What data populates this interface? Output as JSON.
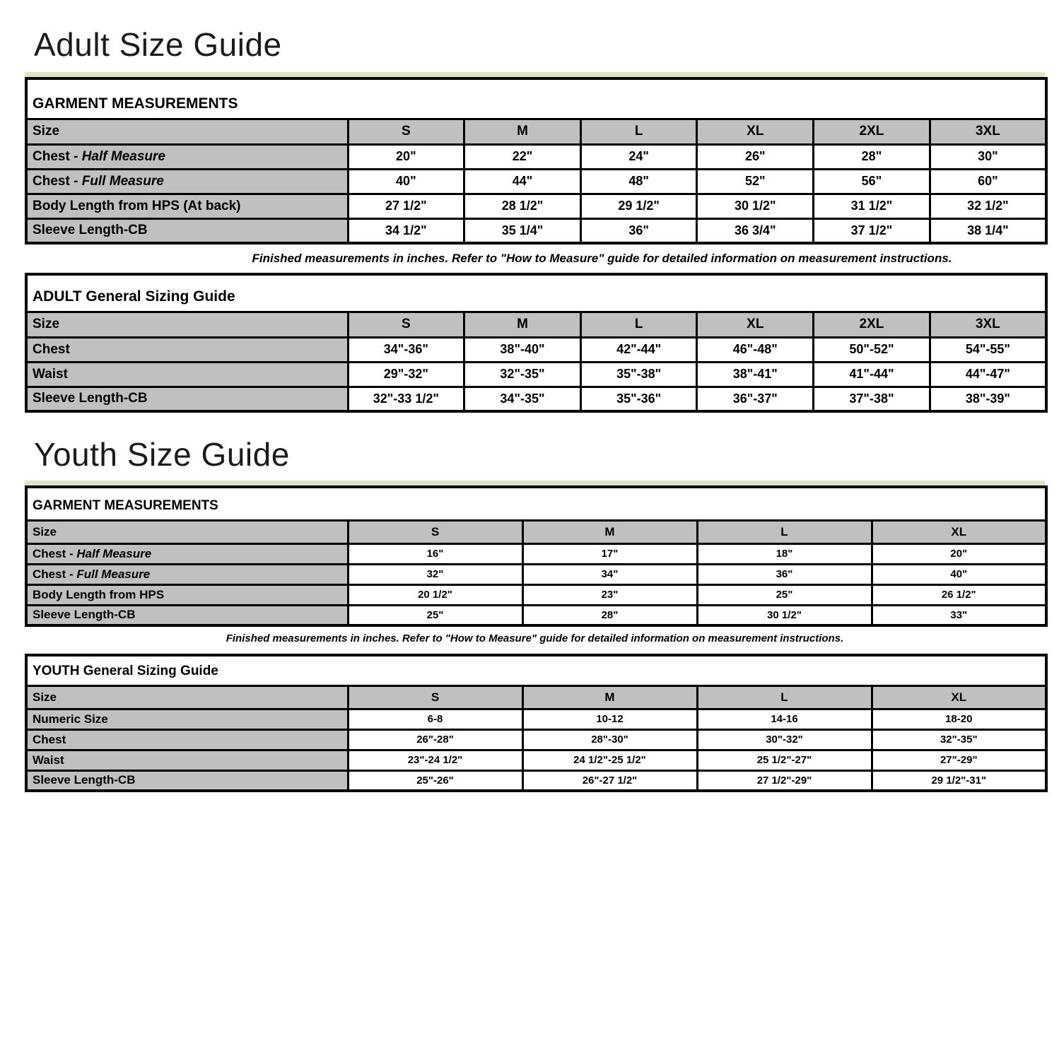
{
  "page": {
    "adult_heading": "Adult Size Guide",
    "youth_heading": "Youth Size Guide"
  },
  "notes": {
    "adult": "Finished measurements in inches. Refer to \"How to Measure\" guide for detailed information on measurement instructions.",
    "youth": "Finished measurements in inches. Refer to \"How to Measure\" guide for detailed information on measurement instructions."
  },
  "colors": {
    "accent_line": "#dce4c0",
    "header_gray": "#c0c0c0",
    "border": "#000000"
  },
  "tables": {
    "adult_garment": {
      "title": "GARMENT MEASUREMENTS",
      "size_label": "Size",
      "columns": [
        "S",
        "M",
        "L",
        "XL",
        "2XL",
        "3XL"
      ],
      "rows": [
        {
          "label": "Chest - ",
          "label_italic": "Half Measure",
          "values": [
            "20\"",
            "22\"",
            "24\"",
            "26\"",
            "28\"",
            "30\""
          ]
        },
        {
          "label": "Chest - ",
          "label_italic": "Full Measure",
          "values": [
            "40\"",
            "44\"",
            "48\"",
            "52\"",
            "56\"",
            "60\""
          ]
        },
        {
          "label": "Body Length from HPS (At back)",
          "label_italic": "",
          "values": [
            "27 1/2\"",
            "28 1/2\"",
            "29 1/2\"",
            "30 1/2\"",
            "31 1/2\"",
            "32 1/2\""
          ]
        },
        {
          "label": "Sleeve Length-CB",
          "label_italic": "",
          "values": [
            "34 1/2\"",
            "35 1/4\"",
            "36\"",
            "36 3/4\"",
            "37 1/2\"",
            "38 1/4\""
          ]
        }
      ]
    },
    "adult_general": {
      "title": "ADULT General Sizing Guide",
      "size_label": "Size",
      "columns": [
        "S",
        "M",
        "L",
        "XL",
        "2XL",
        "3XL"
      ],
      "rows": [
        {
          "label": "Chest",
          "label_italic": "",
          "values": [
            "34\"-36\"",
            "38\"-40\"",
            "42\"-44\"",
            "46\"-48\"",
            "50\"-52\"",
            "54\"-55\""
          ]
        },
        {
          "label": "Waist",
          "label_italic": "",
          "values": [
            "29\"-32\"",
            "32\"-35\"",
            "35\"-38\"",
            "38\"-41\"",
            "41\"-44\"",
            "44\"-47\""
          ]
        },
        {
          "label": "Sleeve Length-CB",
          "label_italic": "",
          "values": [
            "32\"-33 1/2\"",
            "34\"-35\"",
            "35\"-36\"",
            "36\"-37\"",
            "37\"-38\"",
            "38\"-39\""
          ]
        }
      ]
    },
    "youth_garment": {
      "title": "GARMENT MEASUREMENTS",
      "size_label": "Size",
      "columns": [
        "S",
        "M",
        "L",
        "XL"
      ],
      "rows": [
        {
          "label": "Chest - ",
          "label_italic": "Half Measure",
          "values": [
            "16\"",
            "17\"",
            "18\"",
            "20\""
          ]
        },
        {
          "label": "Chest - ",
          "label_italic": "Full Measure",
          "values": [
            "32\"",
            "34\"",
            "36\"",
            "40\""
          ]
        },
        {
          "label": "Body Length from HPS",
          "label_italic": "",
          "values": [
            "20 1/2\"",
            "23\"",
            "25\"",
            "26 1/2\""
          ]
        },
        {
          "label": "Sleeve Length-CB",
          "label_italic": "",
          "values": [
            "25\"",
            "28\"",
            "30 1/2\"",
            "33\""
          ]
        }
      ]
    },
    "youth_general": {
      "title": "YOUTH General Sizing Guide",
      "size_label": "Size",
      "columns": [
        "S",
        "M",
        "L",
        "XL"
      ],
      "rows": [
        {
          "label": "Numeric Size",
          "label_italic": "",
          "values": [
            "6-8",
            "10-12",
            "14-16",
            "18-20"
          ]
        },
        {
          "label": "Chest",
          "label_italic": "",
          "values": [
            "26\"-28\"",
            "28\"-30\"",
            "30\"-32\"",
            "32\"-35\""
          ]
        },
        {
          "label": "Waist",
          "label_italic": "",
          "values": [
            "23\"-24 1/2\"",
            "24 1/2\"-25 1/2\"",
            "25 1/2\"-27\"",
            "27\"-29\""
          ]
        },
        {
          "label": "Sleeve Length-CB",
          "label_italic": "",
          "values": [
            "25\"-26\"",
            "26\"-27 1/2\"",
            "27 1/2\"-29\"",
            "29 1/2\"-31\""
          ]
        }
      ]
    }
  }
}
